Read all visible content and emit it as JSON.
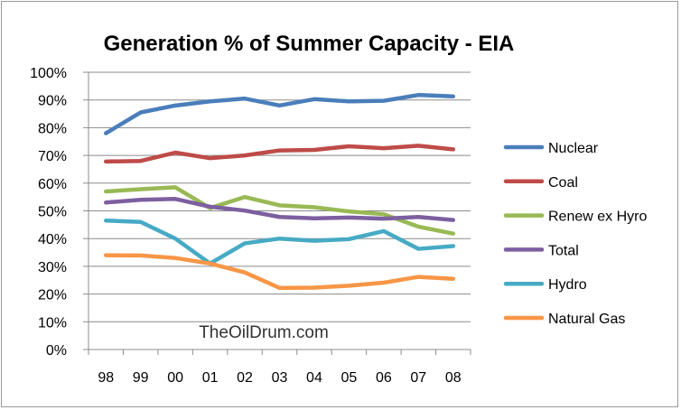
{
  "chart_data": {
    "type": "line",
    "title": "Generation % of Summer Capacity - EIA",
    "xlabel": "",
    "ylabel": "",
    "categories": [
      "98",
      "99",
      "00",
      "01",
      "02",
      "03",
      "04",
      "05",
      "06",
      "07",
      "08"
    ],
    "y_ticks": [
      "0%",
      "10%",
      "20%",
      "30%",
      "40%",
      "50%",
      "60%",
      "70%",
      "80%",
      "90%",
      "100%"
    ],
    "ylim": [
      0,
      100
    ],
    "grid": true,
    "legend_position": "right",
    "watermark": "TheOilDrum.com",
    "series": [
      {
        "name": "Nuclear",
        "color": "#4a7ebb",
        "values": [
          78,
          85.5,
          88,
          89.5,
          90.5,
          88,
          90.3,
          89.5,
          89.7,
          91.8,
          91.3
        ]
      },
      {
        "name": "Coal",
        "color": "#be4b48",
        "values": [
          67.8,
          68,
          71,
          69,
          70,
          71.8,
          72,
          73.3,
          72.6,
          73.5,
          72.2
        ]
      },
      {
        "name": "Renew ex Hyro",
        "color": "#98b954",
        "values": [
          57,
          57.8,
          58.5,
          51,
          55,
          52,
          51.3,
          49.8,
          48.8,
          44.3,
          41.8
        ]
      },
      {
        "name": "Total",
        "color": "#7d5fa0",
        "values": [
          53,
          54,
          54.3,
          51.5,
          50.1,
          47.8,
          47.3,
          47.6,
          47.2,
          47.8,
          46.7
        ]
      },
      {
        "name": "Hydro",
        "color": "#46aac5",
        "values": [
          46.5,
          46,
          40,
          31,
          38.3,
          40,
          39.2,
          39.8,
          42.7,
          36.3,
          37.3
        ]
      },
      {
        "name": "Natural Gas",
        "color": "#f79646",
        "values": [
          34,
          33.9,
          33,
          31,
          27.8,
          22.2,
          22.3,
          23,
          24.1,
          26.2,
          25.5
        ]
      }
    ]
  }
}
